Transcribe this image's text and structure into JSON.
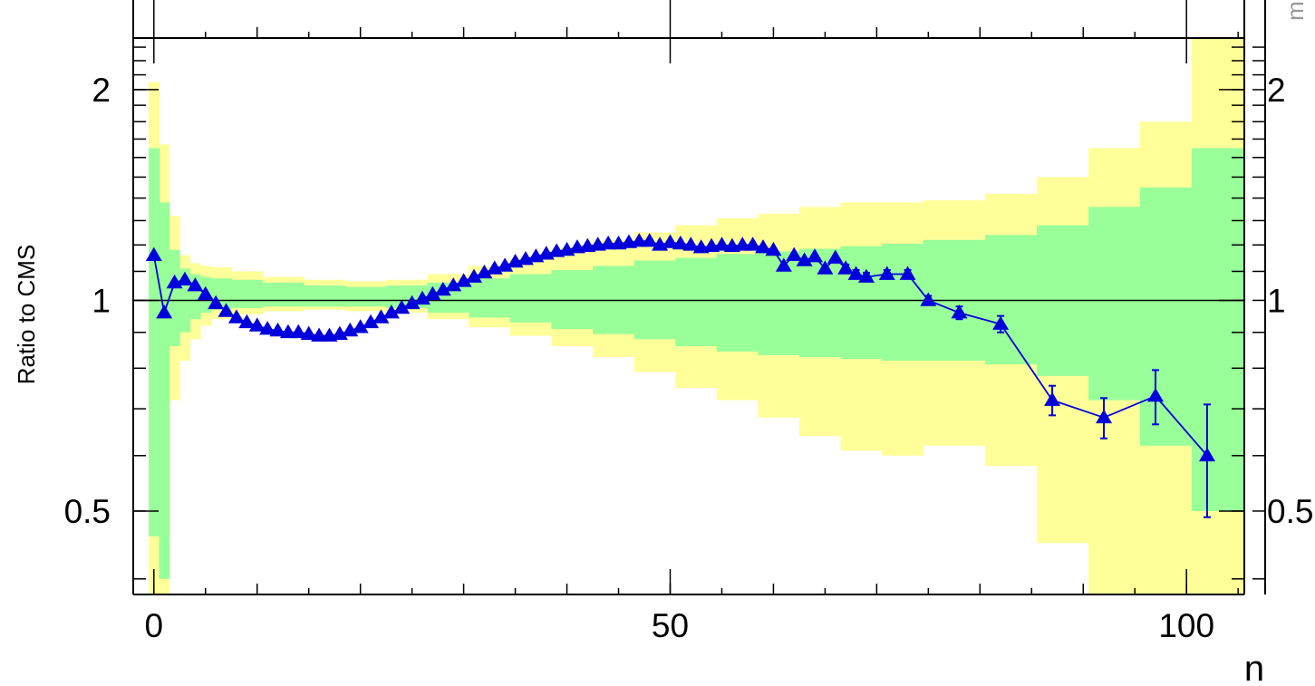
{
  "chart_data": {
    "type": "line",
    "title": "",
    "xlabel": "n",
    "ylabel": "Ratio to CMS",
    "yscale": "log",
    "xlim": [
      -2,
      105.6
    ],
    "ylim": [
      0.38,
      2.37
    ],
    "x_ticks": [
      0,
      50,
      100
    ],
    "x_tick_labels": [
      "0",
      "50",
      "100"
    ],
    "y_ticks": [
      0.5,
      1,
      2
    ],
    "y_tick_labels": [
      "0.5",
      "1",
      "2"
    ],
    "right_axis_tick_labels": [
      "2",
      "1",
      "0.5"
    ],
    "right_edge_text": "m",
    "reference_line": 1,
    "grid": false,
    "colors": {
      "marker": "#0000dd",
      "inner_band": "#99ff99",
      "outer_band": "#ffff99",
      "axes": "#000000"
    },
    "bands": {
      "x": [
        -0.5,
        0.5,
        1.5,
        2.5,
        3.5,
        4.5,
        5.5,
        7.5,
        10.5,
        14.5,
        18.5,
        22.5,
        26.5,
        30.5,
        34.5,
        38.5,
        42.5,
        46.5,
        50.5,
        54.5,
        58.5,
        62.5,
        66.5,
        70.5,
        74.5,
        80.5,
        85.5,
        90.5,
        95.5,
        100.5,
        105.5
      ],
      "inner_low": [
        0.46,
        0.4,
        0.86,
        0.9,
        0.94,
        0.96,
        0.97,
        0.975,
        0.98,
        0.98,
        0.98,
        0.975,
        0.96,
        0.945,
        0.93,
        0.91,
        0.895,
        0.88,
        0.86,
        0.845,
        0.835,
        0.83,
        0.825,
        0.82,
        0.82,
        0.81,
        0.78,
        0.72,
        0.62,
        0.5
      ],
      "inner_high": [
        1.65,
        1.38,
        1.18,
        1.11,
        1.09,
        1.08,
        1.075,
        1.07,
        1.06,
        1.05,
        1.045,
        1.05,
        1.06,
        1.075,
        1.09,
        1.105,
        1.12,
        1.14,
        1.15,
        1.165,
        1.175,
        1.185,
        1.195,
        1.205,
        1.22,
        1.24,
        1.28,
        1.36,
        1.45,
        1.65
      ],
      "outer_low": [
        0.35,
        0.35,
        0.72,
        0.82,
        0.88,
        0.92,
        0.94,
        0.955,
        0.965,
        0.97,
        0.965,
        0.96,
        0.94,
        0.915,
        0.89,
        0.86,
        0.83,
        0.79,
        0.75,
        0.72,
        0.68,
        0.64,
        0.61,
        0.6,
        0.62,
        0.58,
        0.45,
        0.35,
        0.35,
        0.35
      ],
      "outer_high": [
        2.05,
        1.67,
        1.32,
        1.16,
        1.13,
        1.12,
        1.115,
        1.1,
        1.08,
        1.07,
        1.065,
        1.07,
        1.09,
        1.12,
        1.15,
        1.19,
        1.22,
        1.25,
        1.28,
        1.31,
        1.33,
        1.36,
        1.38,
        1.38,
        1.39,
        1.42,
        1.5,
        1.65,
        1.8,
        2.45
      ]
    },
    "series": [
      {
        "x": [
          0,
          1,
          2,
          3,
          4,
          5,
          6,
          7,
          8,
          9,
          10,
          11,
          12,
          13,
          14,
          15,
          16,
          17,
          18,
          19,
          20,
          21,
          22,
          23,
          24,
          25,
          26,
          27,
          28,
          29,
          30,
          31,
          32,
          33,
          34,
          35,
          36,
          37,
          38,
          39,
          40,
          41,
          42,
          43,
          44,
          45,
          46,
          47,
          48,
          49,
          50,
          51,
          52,
          53,
          54,
          55,
          56,
          57,
          58,
          59,
          60,
          61,
          62,
          63,
          64,
          65,
          66,
          67,
          68,
          69,
          71,
          73,
          75,
          78,
          82,
          87,
          92,
          97,
          102
        ],
        "y": [
          1.16,
          0.96,
          1.06,
          1.07,
          1.05,
          1.02,
          0.99,
          0.965,
          0.945,
          0.93,
          0.92,
          0.91,
          0.905,
          0.9,
          0.9,
          0.895,
          0.89,
          0.89,
          0.895,
          0.905,
          0.915,
          0.93,
          0.945,
          0.96,
          0.975,
          0.99,
          1.005,
          1.02,
          1.035,
          1.05,
          1.065,
          1.08,
          1.095,
          1.11,
          1.12,
          1.135,
          1.145,
          1.155,
          1.165,
          1.175,
          1.18,
          1.19,
          1.195,
          1.2,
          1.205,
          1.205,
          1.21,
          1.215,
          1.215,
          1.2,
          1.21,
          1.205,
          1.2,
          1.19,
          1.195,
          1.2,
          1.195,
          1.2,
          1.2,
          1.19,
          1.18,
          1.12,
          1.16,
          1.14,
          1.155,
          1.11,
          1.15,
          1.11,
          1.09,
          1.08,
          1.09,
          1.09,
          1.0,
          0.96,
          0.925,
          0.72,
          0.68,
          0.73,
          0.6
        ],
        "err": [
          0.01,
          0.01,
          0.01,
          0.01,
          0.005,
          0.005,
          0.005,
          0.005,
          0.005,
          0.005,
          0.005,
          0.005,
          0.005,
          0.005,
          0.005,
          0.005,
          0.005,
          0.005,
          0.005,
          0.005,
          0.005,
          0.005,
          0.005,
          0.005,
          0.005,
          0.005,
          0.005,
          0.005,
          0.005,
          0.005,
          0.005,
          0.005,
          0.005,
          0.005,
          0.005,
          0.005,
          0.005,
          0.005,
          0.005,
          0.005,
          0.005,
          0.005,
          0.005,
          0.005,
          0.005,
          0.005,
          0.005,
          0.008,
          0.008,
          0.008,
          0.008,
          0.008,
          0.008,
          0.008,
          0.008,
          0.008,
          0.008,
          0.01,
          0.01,
          0.01,
          0.01,
          0.01,
          0.01,
          0.01,
          0.01,
          0.012,
          0.012,
          0.015,
          0.015,
          0.015,
          0.015,
          0.015,
          0.015,
          0.02,
          0.025,
          0.035,
          0.045,
          0.065,
          0.11
        ]
      }
    ]
  }
}
